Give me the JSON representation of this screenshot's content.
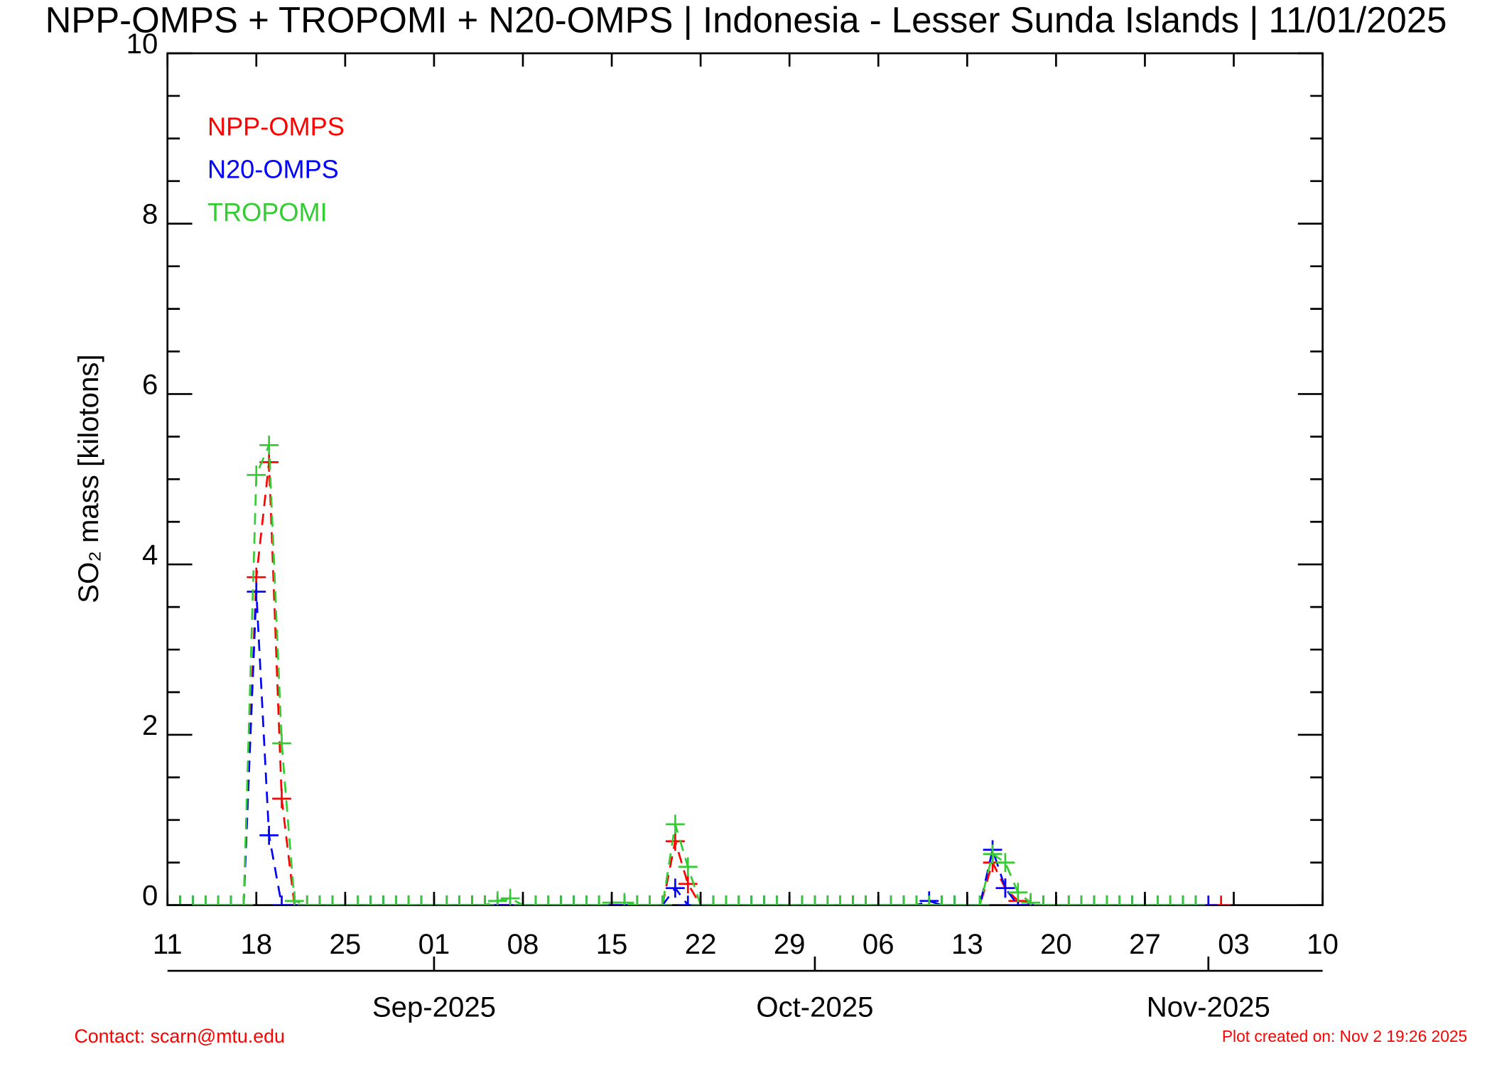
{
  "chart_data": {
    "type": "line",
    "title": "NPP-OMPS + TROPOMI + N20-OMPS | Indonesia - Lesser Sunda Islands | 11/01/2025",
    "y_label": "SO₂ mass [kilotons]",
    "contact": "Contact: scarn@mtu.edu",
    "created": "Plot created on: Nov  2 19:26 2025",
    "x": [
      "2025-08-11",
      "2025-08-12",
      "2025-08-13",
      "2025-08-14",
      "2025-08-15",
      "2025-08-16",
      "2025-08-17",
      "2025-08-18",
      "2025-08-19",
      "2025-08-20",
      "2025-08-21",
      "2025-08-22",
      "2025-08-23",
      "2025-08-24",
      "2025-08-25",
      "2025-08-26",
      "2025-08-27",
      "2025-08-28",
      "2025-08-29",
      "2025-08-30",
      "2025-08-31",
      "2025-09-01",
      "2025-09-02",
      "2025-09-03",
      "2025-09-04",
      "2025-09-05",
      "2025-09-06",
      "2025-09-07",
      "2025-09-08",
      "2025-09-09",
      "2025-09-10",
      "2025-09-11",
      "2025-09-12",
      "2025-09-13",
      "2025-09-14",
      "2025-09-15",
      "2025-09-16",
      "2025-09-17",
      "2025-09-18",
      "2025-09-19",
      "2025-09-20",
      "2025-09-21",
      "2025-09-22",
      "2025-09-23",
      "2025-09-24",
      "2025-09-25",
      "2025-09-26",
      "2025-09-27",
      "2025-09-28",
      "2025-09-29",
      "2025-09-30",
      "2025-10-01",
      "2025-10-02",
      "2025-10-03",
      "2025-10-04",
      "2025-10-05",
      "2025-10-06",
      "2025-10-07",
      "2025-10-08",
      "2025-10-09",
      "2025-10-10",
      "2025-10-11",
      "2025-10-12",
      "2025-10-13",
      "2025-10-14",
      "2025-10-15",
      "2025-10-16",
      "2025-10-17",
      "2025-10-18",
      "2025-10-19",
      "2025-10-20",
      "2025-10-21",
      "2025-10-22",
      "2025-10-23",
      "2025-10-24",
      "2025-10-25",
      "2025-10-26",
      "2025-10-27",
      "2025-10-28",
      "2025-10-29",
      "2025-10-30",
      "2025-10-31",
      "2025-11-01",
      "2025-11-02"
    ],
    "series": [
      {
        "name": "NPP-OMPS",
        "color": "#ff0000",
        "values": [
          0,
          0,
          0,
          0,
          0,
          0,
          0,
          3.85,
          5.2,
          1.25,
          0,
          0,
          0,
          0,
          0,
          0,
          0,
          0,
          0,
          0,
          0,
          0,
          0,
          0,
          0,
          0,
          0,
          0,
          0,
          0,
          0,
          0,
          0,
          0,
          0,
          0,
          0,
          0,
          0,
          0,
          0.75,
          0.25,
          0,
          0,
          0,
          0,
          0,
          0,
          0,
          0,
          0,
          0,
          0,
          0,
          0,
          0,
          0,
          0,
          0,
          0,
          0,
          0,
          0,
          0,
          0,
          0.5,
          0.2,
          0.05,
          0,
          0,
          0,
          0,
          0,
          0,
          0,
          0,
          0,
          0,
          0,
          0,
          0,
          0,
          0,
          0
        ]
      },
      {
        "name": "N20-OMPS",
        "color": "#0000ff",
        "values": [
          0,
          0,
          0,
          0,
          0,
          0,
          0,
          3.68,
          0.82,
          0,
          0,
          0,
          0,
          0,
          0,
          0,
          0,
          0,
          0,
          0,
          0,
          0,
          0,
          0,
          0,
          0,
          0,
          0,
          0,
          0,
          0,
          0,
          0,
          0,
          0,
          0,
          0,
          0,
          0,
          0,
          0.2,
          0,
          0,
          0,
          0,
          0,
          0,
          0,
          0,
          0,
          0,
          0,
          0,
          0,
          0,
          0,
          0,
          0,
          0,
          0,
          0.05,
          0,
          0,
          0,
          0,
          0.65,
          0.2,
          0,
          0,
          0,
          0,
          0,
          0,
          0,
          0,
          0,
          0,
          0,
          0,
          0,
          0,
          0,
          0,
          null
        ]
      },
      {
        "name": "TROPOMI",
        "color": "#33cc33",
        "values": [
          0,
          0,
          0,
          0,
          0,
          0,
          0,
          5.05,
          5.4,
          1.9,
          0.05,
          0,
          0,
          0,
          0,
          0,
          0,
          0,
          0,
          0,
          0,
          0,
          0,
          0,
          0,
          0,
          0.05,
          0.08,
          0,
          0,
          0,
          0,
          0,
          0,
          0,
          0.03,
          0.03,
          0,
          0,
          0,
          0.95,
          0.45,
          0,
          0,
          0,
          0,
          0,
          0,
          0,
          0,
          0,
          0,
          0,
          0,
          0,
          0,
          0,
          0,
          0,
          0,
          0,
          0,
          0,
          0,
          0,
          0.6,
          0.5,
          0.15,
          0.03,
          0,
          0,
          0,
          0,
          0,
          0,
          0,
          0,
          0,
          0,
          0,
          0,
          0,
          null,
          null
        ]
      }
    ],
    "xlim": [
      "2025-08-11",
      "2025-11-10"
    ],
    "xticks": [
      {
        "value": "2025-08-11",
        "label": "11"
      },
      {
        "value": "2025-08-18",
        "label": "18"
      },
      {
        "value": "2025-08-25",
        "label": "25"
      },
      {
        "value": "2025-09-01",
        "label": "01"
      },
      {
        "value": "2025-09-08",
        "label": "08"
      },
      {
        "value": "2025-09-15",
        "label": "15"
      },
      {
        "value": "2025-09-22",
        "label": "22"
      },
      {
        "value": "2025-09-29",
        "label": "29"
      },
      {
        "value": "2025-10-06",
        "label": "06"
      },
      {
        "value": "2025-10-13",
        "label": "13"
      },
      {
        "value": "2025-10-20",
        "label": "20"
      },
      {
        "value": "2025-10-27",
        "label": "27"
      },
      {
        "value": "2025-11-03",
        "label": "03"
      },
      {
        "value": "2025-11-10",
        "label": "10"
      }
    ],
    "month_ticks": [
      {
        "value": "2025-09-01",
        "label": "Sep-2025"
      },
      {
        "value": "2025-10-01",
        "label": "Oct-2025"
      },
      {
        "value": "2025-11-01",
        "label": "Nov-2025"
      }
    ],
    "ylim": [
      0,
      10
    ],
    "yticks": [
      0,
      2,
      4,
      6,
      8,
      10
    ]
  }
}
